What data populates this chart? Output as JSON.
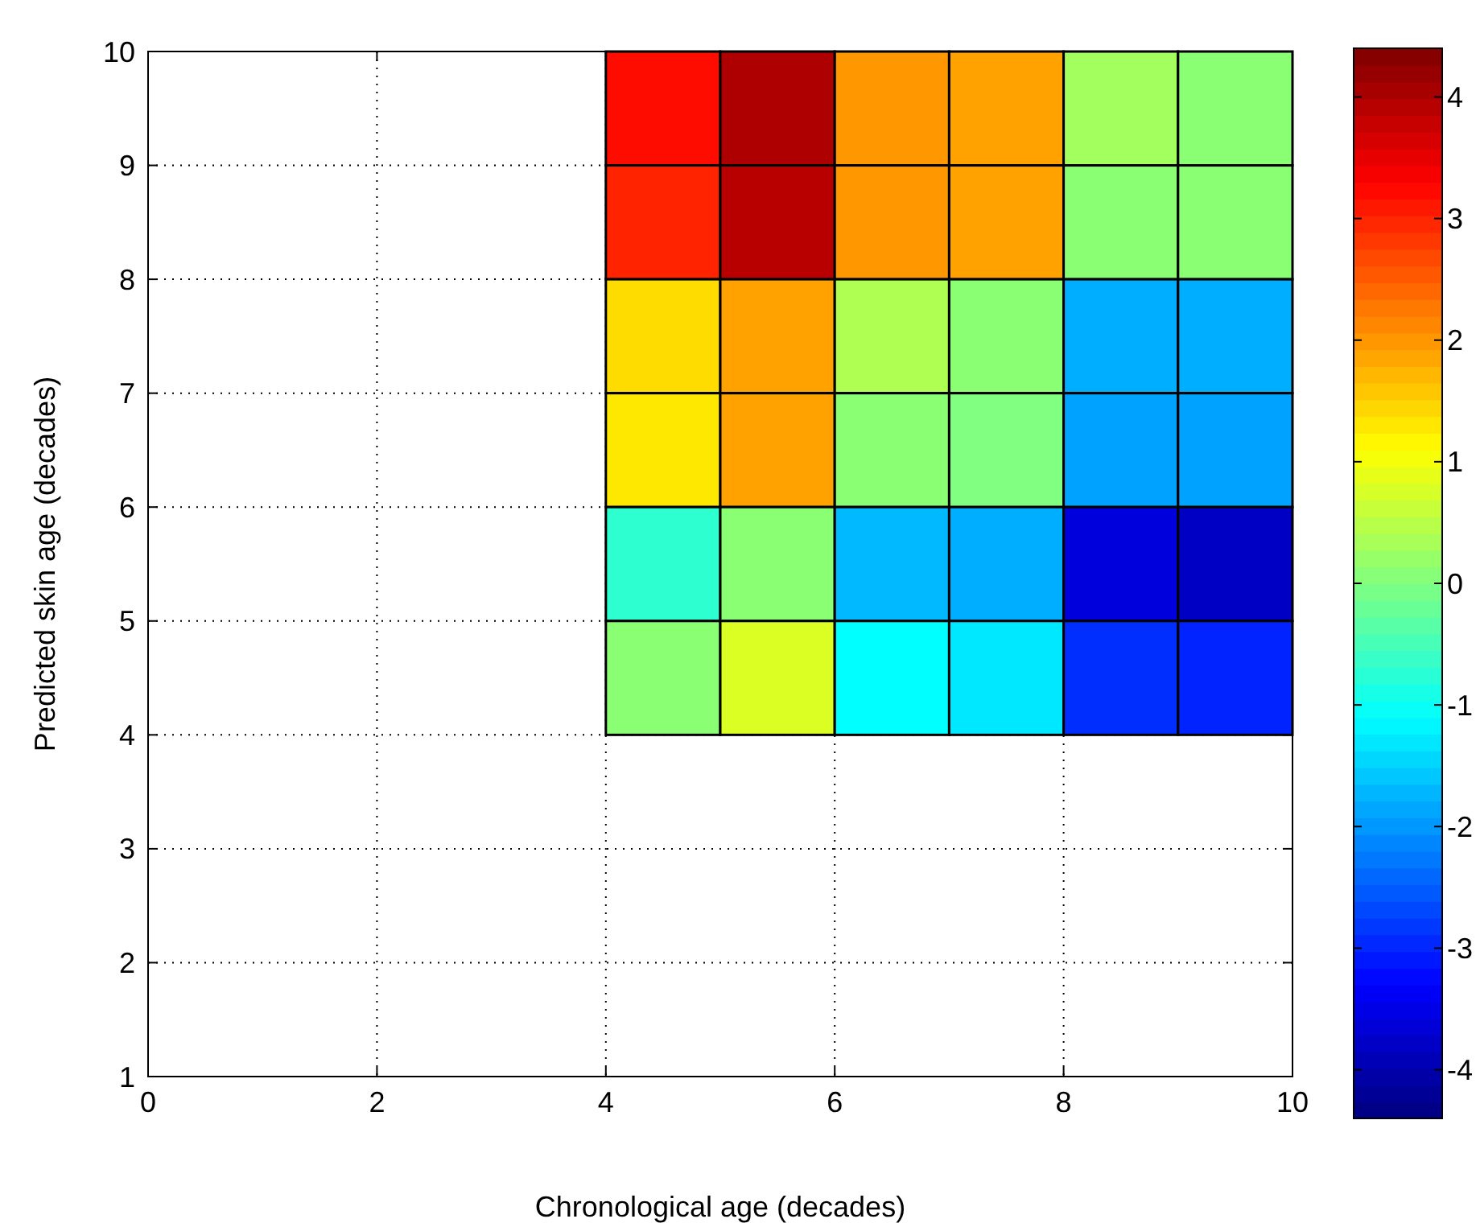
{
  "chart_data": {
    "type": "heatmap",
    "xlabel": "Chronological age (decades)",
    "ylabel": "Predicted skin age (decades)",
    "x": [
      4.5,
      5.5,
      6.5,
      7.5,
      8.5,
      9.5
    ],
    "y": [
      9.5,
      8.5,
      7.5,
      6.5,
      5.5,
      4.5
    ],
    "cells": [
      [
        3.2,
        4.0,
        2.0,
        1.9,
        0.3,
        0.1
      ],
      [
        3.0,
        3.9,
        2.0,
        1.9,
        0.1,
        0.1
      ],
      [
        1.4,
        1.9,
        0.4,
        0.1,
        -1.8,
        -1.8
      ],
      [
        1.3,
        1.9,
        0.1,
        0.0,
        -1.9,
        -1.9
      ],
      [
        -0.7,
        0.1,
        -1.7,
        -1.8,
        -3.6,
        -3.8
      ],
      [
        0.1,
        0.8,
        -1.1,
        -1.3,
        -2.9,
        -3.0
      ]
    ],
    "xlim": [
      0,
      10
    ],
    "ylim": [
      1,
      10
    ],
    "xticks": [
      0,
      2,
      4,
      6,
      8,
      10
    ],
    "yticks": [
      1,
      2,
      3,
      4,
      5,
      6,
      7,
      8,
      9,
      10
    ],
    "grid": true,
    "clim": [
      -4.4,
      4.4
    ],
    "cticks": [
      -4,
      -3,
      -2,
      -1,
      0,
      1,
      2,
      3,
      4
    ]
  }
}
